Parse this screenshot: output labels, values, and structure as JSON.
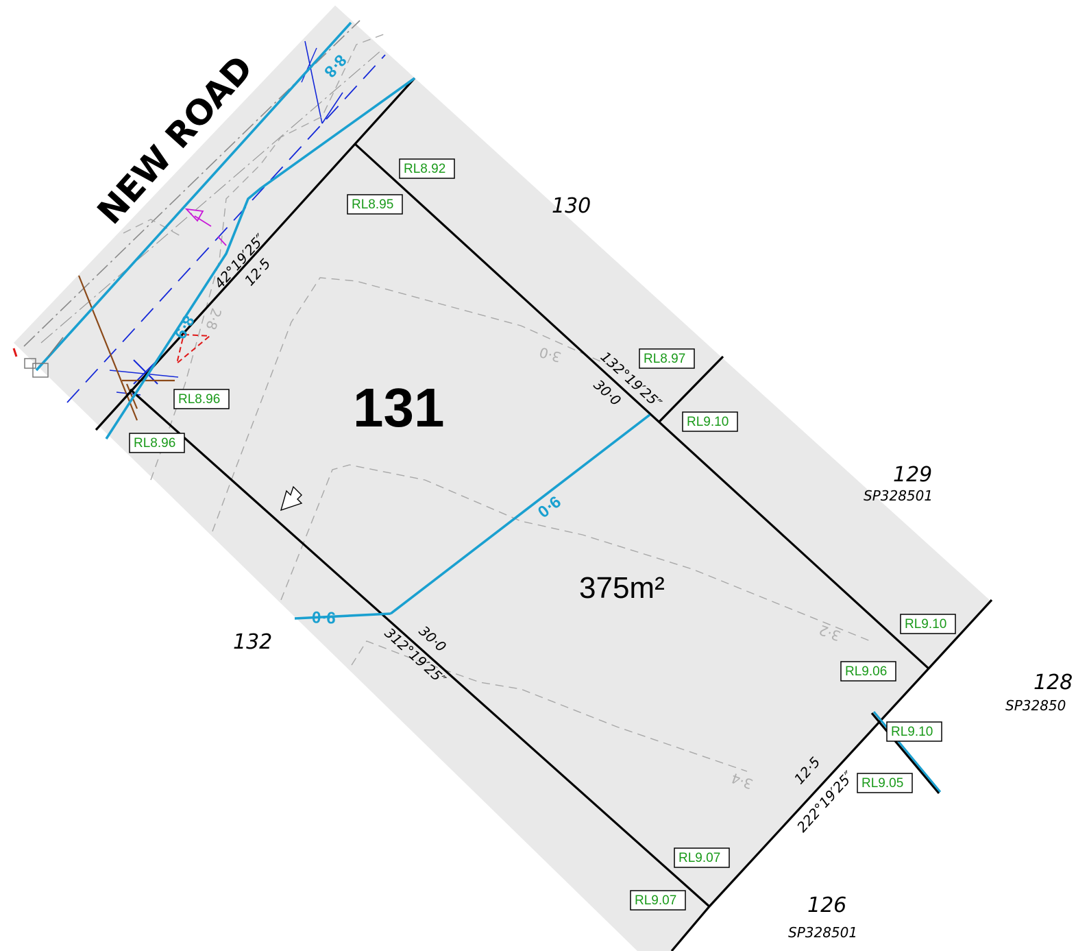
{
  "road": {
    "name": "NEW ROAD"
  },
  "lot": {
    "number": "131",
    "area": "375m²"
  },
  "neighbours": {
    "lot_130": {
      "number": "130"
    },
    "lot_132": {
      "number": "132"
    },
    "lot_129": {
      "number": "129",
      "plan": "SP328501"
    },
    "lot_128": {
      "number": "128",
      "plan": "SP32850"
    },
    "lot_126": {
      "number": "126",
      "plan": "SP328501"
    }
  },
  "dimensions": {
    "front_bearing": "42°19′25″",
    "front_length": "12·5",
    "ne_bearing": "132°19′25″",
    "ne_length": "30·0",
    "sw_bearing": "312°19′25″",
    "sw_length": "30·0",
    "rear_bearing": "222°19′25″",
    "rear_length": "12·5"
  },
  "contours": {
    "road_upper": "8·8",
    "road_lower": "8·9",
    "lot_middle": "9·0",
    "lot_left": "9·0"
  },
  "ground_contours": {
    "a": "2·8",
    "b": "3·0",
    "c": "3·2",
    "d": "3·4"
  },
  "spot_levels": [
    {
      "id": "rl-892",
      "label": "RL8.92"
    },
    {
      "id": "rl-895",
      "label": "RL8.95"
    },
    {
      "id": "rl-896-a",
      "label": "RL8.96"
    },
    {
      "id": "rl-896-b",
      "label": "RL8.96"
    },
    {
      "id": "rl-897",
      "label": "RL8.97"
    },
    {
      "id": "rl-910-a",
      "label": "RL9.10"
    },
    {
      "id": "rl-910-b",
      "label": "RL9.10"
    },
    {
      "id": "rl-906",
      "label": "RL9.06"
    },
    {
      "id": "rl-910-c",
      "label": "RL9.10"
    },
    {
      "id": "rl-905",
      "label": "RL9.05"
    },
    {
      "id": "rl-907-a",
      "label": "RL9.07"
    },
    {
      "id": "rl-907-b",
      "label": "RL9.07"
    }
  ],
  "colors": {
    "background": "#e9e9e9",
    "boundary": "#000000",
    "contour": "#1aa0d0",
    "sewer": "#1428d8",
    "stormwater": "#8b4a1a",
    "levels": "#1a9a1a"
  }
}
